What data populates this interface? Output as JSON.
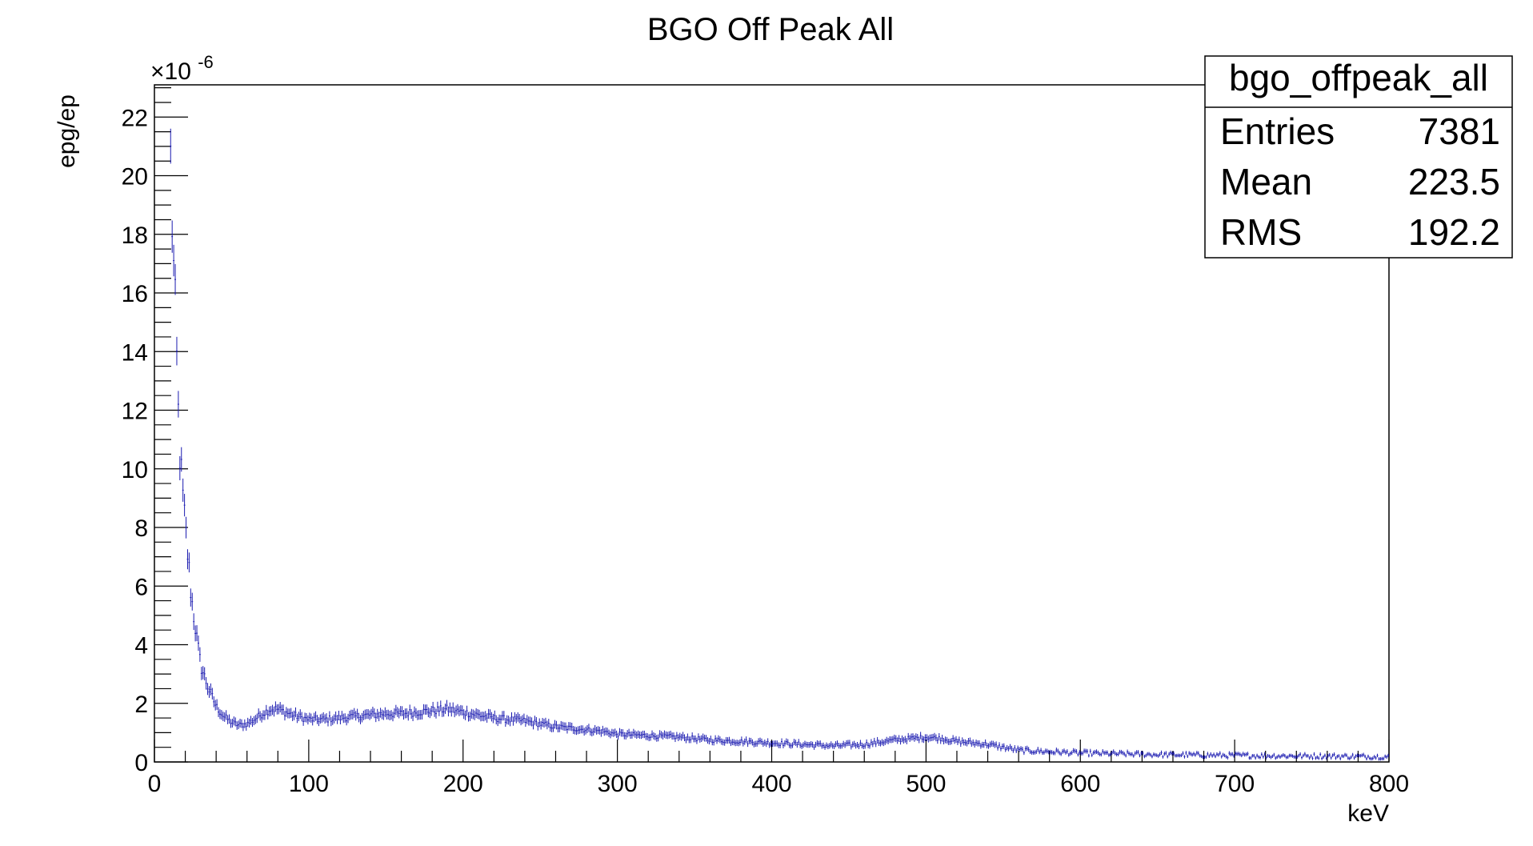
{
  "chart_data": {
    "type": "scatter",
    "title": "BGO Off Peak All",
    "xlabel": "keV",
    "ylabel": "epg/ep",
    "y_exponent_label": "×10",
    "y_exponent_sup": "-6",
    "xlim": [
      0,
      800
    ],
    "ylim": [
      0,
      23.1
    ],
    "x_ticks": [
      0,
      100,
      200,
      300,
      400,
      500,
      600,
      700,
      800
    ],
    "y_ticks": [
      0,
      2,
      4,
      6,
      8,
      10,
      12,
      14,
      16,
      18,
      20,
      22
    ],
    "grid": false,
    "bin_width": 1,
    "color": "#1a1ab0",
    "stats_box": {
      "name": "bgo_offpeak_all",
      "rows": [
        {
          "label": "Entries",
          "value": "7381"
        },
        {
          "label": "Mean",
          "value": "223.5"
        },
        {
          "label": "RMS",
          "value": "192.2"
        }
      ]
    },
    "profile": {
      "x": [
        10,
        12,
        14,
        16,
        18,
        20,
        22,
        24,
        26,
        28,
        30,
        35,
        40,
        45,
        50,
        55,
        60,
        65,
        70,
        75,
        80,
        90,
        100,
        110,
        120,
        130,
        140,
        150,
        160,
        170,
        180,
        190,
        200,
        210,
        220,
        230,
        240,
        250,
        260,
        270,
        280,
        290,
        300,
        320,
        340,
        360,
        380,
        400,
        420,
        440,
        460,
        480,
        500,
        510,
        520,
        540,
        560,
        580,
        600,
        620,
        650,
        700,
        750,
        800
      ],
      "y": [
        21.5,
        17.5,
        14.5,
        11.0,
        9.3,
        8.0,
        6.8,
        5.6,
        4.8,
        4.0,
        3.3,
        2.5,
        1.9,
        1.55,
        1.35,
        1.25,
        1.3,
        1.45,
        1.65,
        1.8,
        1.8,
        1.6,
        1.45,
        1.45,
        1.5,
        1.55,
        1.6,
        1.65,
        1.65,
        1.7,
        1.75,
        1.8,
        1.7,
        1.6,
        1.5,
        1.45,
        1.4,
        1.3,
        1.2,
        1.15,
        1.1,
        1.05,
        0.95,
        0.9,
        0.85,
        0.75,
        0.7,
        0.65,
        0.6,
        0.55,
        0.6,
        0.75,
        0.85,
        0.8,
        0.7,
        0.6,
        0.4,
        0.35,
        0.3,
        0.28,
        0.25,
        0.22,
        0.2,
        0.18
      ]
    },
    "noise_amplitude": 0.08
  }
}
